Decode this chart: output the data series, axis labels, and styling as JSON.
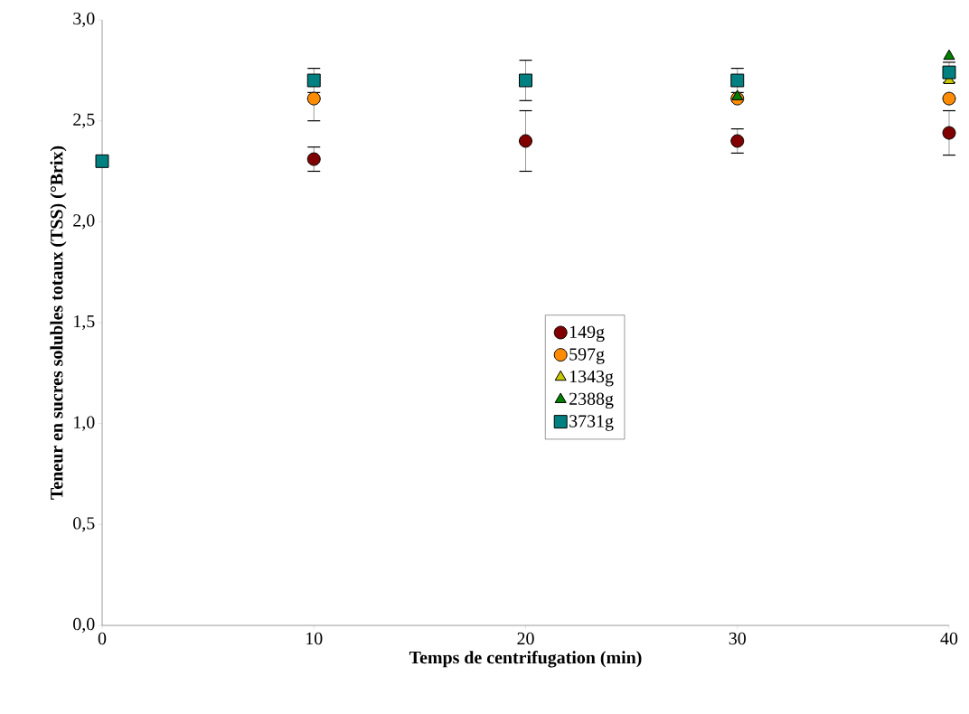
{
  "chart_data": {
    "type": "scatter",
    "xlabel": "Temps de centrifugation (min)",
    "ylabel": "Teneur en sucres solubles totaux (TSS) (°Brix)",
    "x": [
      0,
      10,
      20,
      30,
      40
    ],
    "xlim": [
      0,
      40
    ],
    "xticks": [
      0,
      10,
      20,
      30,
      40
    ],
    "ylim": [
      0,
      3
    ],
    "yticks": [
      {
        "value": 0,
        "label": "0,0"
      },
      {
        "value": 0.5,
        "label": "0,5"
      },
      {
        "value": 1,
        "label": "1,0"
      },
      {
        "value": 1.5,
        "label": "1,5"
      },
      {
        "value": 2,
        "label": "2,0"
      },
      {
        "value": 2.5,
        "label": "2,5"
      },
      {
        "value": 3,
        "label": "3,0"
      }
    ],
    "legend": "center",
    "grid": false,
    "series": [
      {
        "name": "149g",
        "color": "#800000",
        "marker": "circle",
        "values": [
          null,
          2.31,
          2.4,
          2.4,
          2.44
        ],
        "errors": [
          null,
          0.06,
          0.15,
          0.06,
          0.11
        ]
      },
      {
        "name": "597g",
        "color": "#ff8c00",
        "marker": "circle",
        "values": [
          null,
          2.61,
          null,
          2.61,
          2.61
        ],
        "errors": [
          null,
          [
            2.5,
            2.61
          ],
          null,
          null,
          null
        ]
      },
      {
        "name": "1343g",
        "color": "#c8c800",
        "marker": "triangle down",
        "values": [
          null,
          null,
          null,
          null,
          2.7
        ]
      },
      {
        "name": "2388g",
        "color": "#008000",
        "marker": "triangle",
        "values": [
          null,
          null,
          null,
          2.62,
          2.82
        ]
      },
      {
        "name": "3731g",
        "color": "#008080",
        "marker": "square",
        "values": [
          2.3,
          2.7,
          2.7,
          2.7,
          2.74
        ],
        "errors": [
          null,
          0.06,
          0.1,
          0.06,
          0.05
        ]
      }
    ]
  }
}
